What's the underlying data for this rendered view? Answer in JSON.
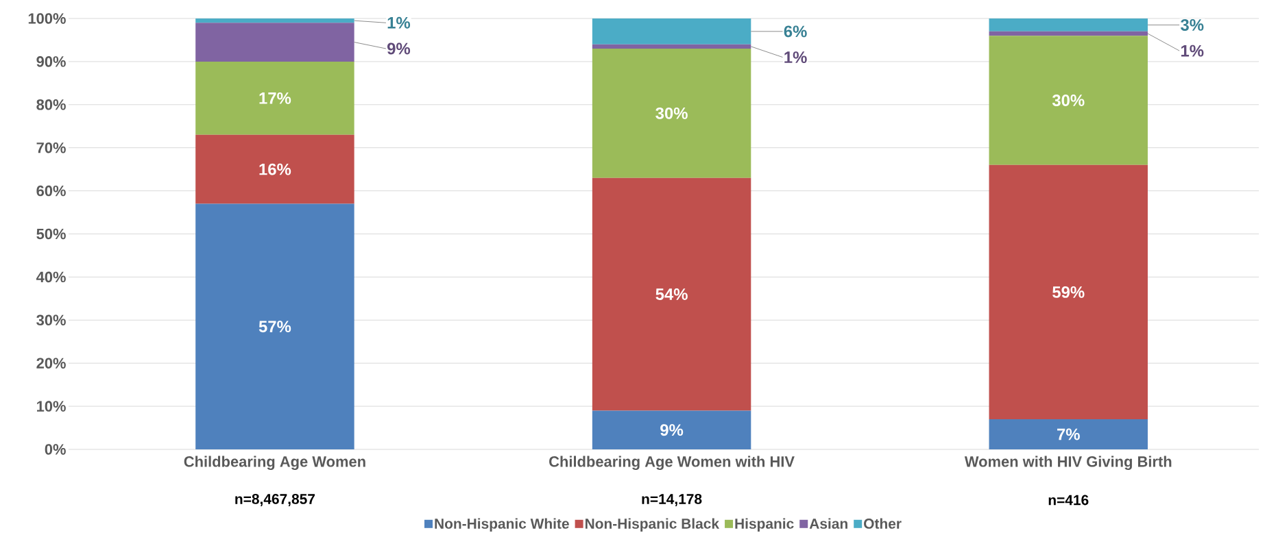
{
  "chart_data": {
    "type": "bar",
    "stacked": true,
    "categories": [
      "Childbearing Age Women",
      "Childbearing Age Women with HIV",
      "Women with HIV Giving Birth"
    ],
    "series": [
      {
        "name": "Non-Hispanic White",
        "color": "#4f81bd",
        "values": [
          57,
          9,
          7
        ],
        "value_labels": [
          "57%",
          "9%",
          "7%"
        ]
      },
      {
        "name": "Non-Hispanic Black",
        "color": "#c0504d",
        "values": [
          16,
          54,
          59
        ],
        "value_labels": [
          "16%",
          "54%",
          "59%"
        ]
      },
      {
        "name": "Hispanic",
        "color": "#9bbb59",
        "values": [
          17,
          30,
          30
        ],
        "value_labels": [
          "17%",
          "30%",
          "30%"
        ]
      },
      {
        "name": "Asian",
        "color": "#8064a2",
        "values": [
          9,
          1,
          1
        ],
        "value_labels": [
          "9%",
          "1%",
          "1%"
        ]
      },
      {
        "name": "Other",
        "color": "#4bacc6",
        "values": [
          1,
          6,
          3
        ],
        "value_labels": [
          "1%",
          "6%",
          "3%"
        ]
      }
    ],
    "ylim": [
      0,
      100
    ],
    "yticks": [
      {
        "value": 0,
        "label": "0%"
      },
      {
        "value": 10,
        "label": "10%"
      },
      {
        "value": 20,
        "label": "20%"
      },
      {
        "value": 30,
        "label": "30%"
      },
      {
        "value": 40,
        "label": "40%"
      },
      {
        "value": 50,
        "label": "50%"
      },
      {
        "value": 60,
        "label": "60%"
      },
      {
        "value": 70,
        "label": "70%"
      },
      {
        "value": 80,
        "label": "80%"
      },
      {
        "value": 90,
        "label": "90%"
      },
      {
        "value": 100,
        "label": "100%"
      }
    ],
    "grid": "y",
    "legend": "bottom",
    "annotations": [
      "n=8,467,857",
      "n=14,178",
      "n=416"
    ]
  }
}
